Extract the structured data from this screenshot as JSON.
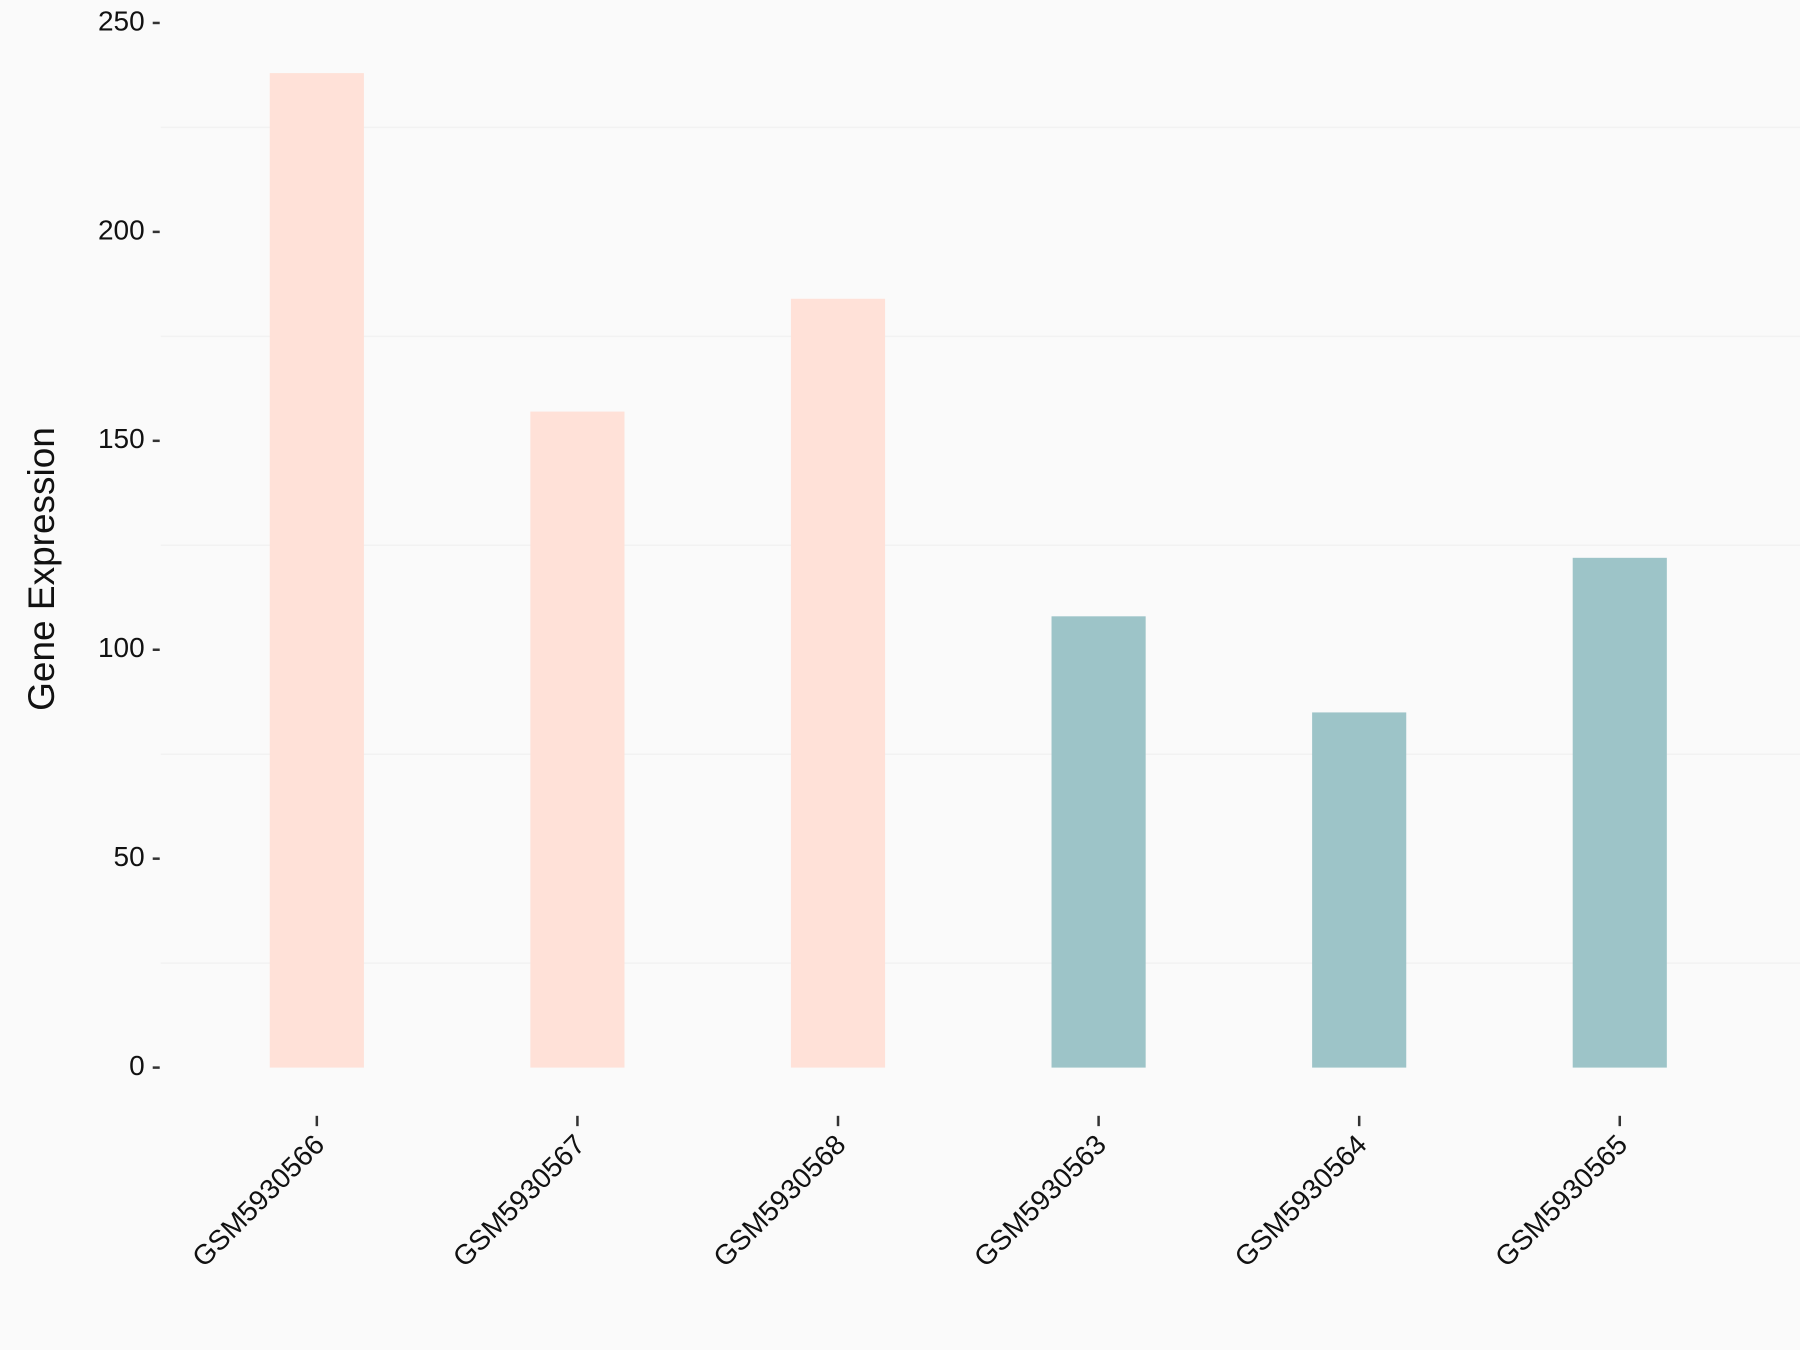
{
  "chart_data": {
    "type": "bar",
    "y_label": "Gene Expression",
    "categories": [
      "GSM5930566",
      "GSM5930567",
      "GSM5930568",
      "GSM5930563",
      "GSM5930564",
      "GSM5930565"
    ],
    "values": [
      238,
      157,
      184,
      108,
      85,
      122
    ],
    "colors": [
      "#ffe1d8",
      "#ffe1d8",
      "#ffe1d8",
      "#9dc4c8",
      "#9dc4c8",
      "#9dc4c8"
    ],
    "ylim": [
      0,
      250
    ],
    "yticks": [
      0,
      50,
      100,
      150,
      200,
      250
    ],
    "minor_grid": true
  }
}
